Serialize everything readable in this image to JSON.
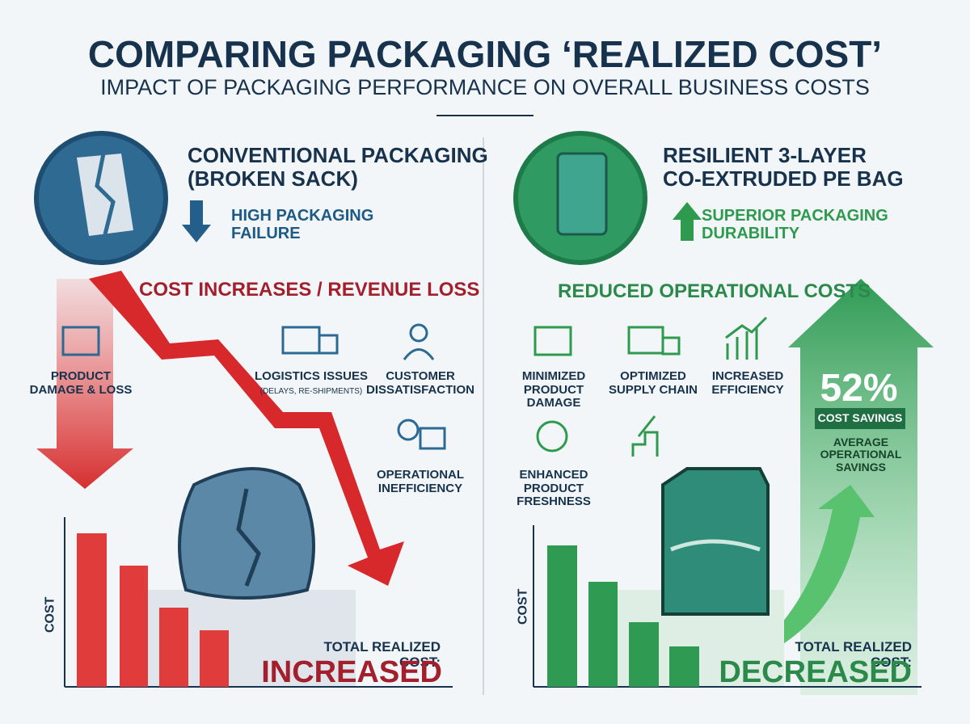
{
  "header": {
    "title": "COMPARING PACKAGING ‘REALIZED COST’",
    "subtitle": "IMPACT OF PACKAGING PERFORMANCE ON OVERALL BUSINESS COSTS"
  },
  "left": {
    "heading": [
      "CONVENTIONAL PACKAGING",
      "(BROKEN SACK)"
    ],
    "indicator": [
      "HIGH PACKAGING",
      "FAILURE"
    ],
    "banner": "COST INCREASES / REVENUE LOSS",
    "items": [
      {
        "label": "PRODUCT DAMAGE & LOSS"
      },
      {
        "label": "LOGISTICS ISSUES",
        "note": "(DELAYS, RE-SHIPMENTS)"
      },
      {
        "label": "CUSTOMER DISSATISFACTION"
      },
      {
        "label": "OPERATIONAL INEFFICIENCY"
      }
    ],
    "axis_label": "COST",
    "total_label": "TOTAL REALIZED COST:",
    "total_value": "INCREASED"
  },
  "right": {
    "heading": [
      "RESILIENT 3-LAYER",
      "CO-EXTRUDED PE BAG"
    ],
    "indicator": [
      "SUPERIOR PACKAGING",
      "DURABILITY"
    ],
    "banner": "REDUCED OPERATIONAL COSTS",
    "items": [
      {
        "label": "MINIMIZED PRODUCT DAMAGE"
      },
      {
        "label": "OPTIMIZED SUPPLY CHAIN"
      },
      {
        "label": "INCREASED EFFICIENCY"
      },
      {
        "label": "ENHANCED PRODUCT FRESHNESS"
      }
    ],
    "savings_value": "52%",
    "savings_label": "COST SAVINGS",
    "savings_note": "AVERAGE OPERATIONAL SAVINGS",
    "axis_label": "COST",
    "total_label": "TOTAL REALIZED COST:",
    "total_value": "DECREASED"
  }
}
